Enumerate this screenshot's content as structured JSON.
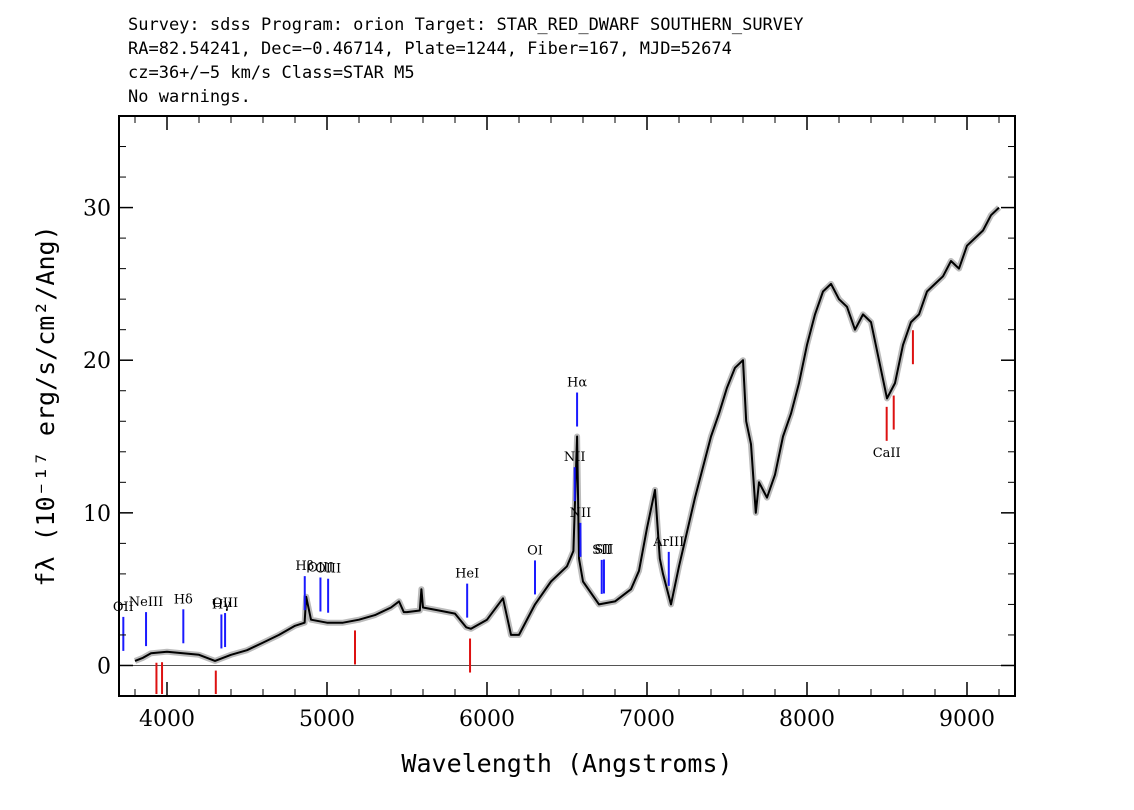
{
  "header": {
    "line1": "Survey: sdss Program: orion Target: STAR_RED_DWARF SOUTHERN_SURVEY",
    "line2": "RA=82.54241, Dec=−0.46714, Plate=1244, Fiber=167, MJD=52674",
    "line3": "cz=36+/−5 km/s Class=STAR M5",
    "line4": "No warnings."
  },
  "chart_data": {
    "type": "line",
    "xlabel": "Wavelength (Angstroms)",
    "ylabel": "fλ (10⁻¹⁷ erg/s/cm²/Ang)",
    "xlim": [
      3700,
      9300
    ],
    "ylim": [
      -2,
      36
    ],
    "x_ticks": [
      4000,
      5000,
      6000,
      7000,
      8000,
      9000
    ],
    "x_tick_labels": [
      "4000",
      "5000",
      "6000",
      "7000",
      "8000",
      "9000"
    ],
    "y_ticks": [
      0,
      10,
      20,
      30
    ],
    "y_tick_labels": [
      "0",
      "10",
      "20",
      "30"
    ],
    "grid": false,
    "colors": {
      "flux": "#000000",
      "error": "#bbbbbb",
      "emission": "#1a1aff",
      "absorption": "#dd1111"
    },
    "series": [
      {
        "x": [
          3800,
          3850,
          3900,
          4000,
          4100,
          4200,
          4300,
          4400,
          4500,
          4600,
          4700,
          4800,
          4860,
          4870,
          4900,
          5000,
          5100,
          5200,
          5300,
          5400,
          5450,
          5480,
          5500,
          5580,
          5590,
          5600,
          5700,
          5800,
          5870,
          5900,
          6000,
          6100,
          6150,
          6200,
          6300,
          6400,
          6500,
          6540,
          6563,
          6575,
          6600,
          6700,
          6800,
          6900,
          6950,
          7000,
          7050,
          7080,
          7100,
          7150,
          7200,
          7300,
          7400,
          7450,
          7500,
          7550,
          7600,
          7620,
          7650,
          7680,
          7700,
          7750,
          7800,
          7850,
          7900,
          7950,
          8000,
          8050,
          8100,
          8150,
          8200,
          8250,
          8300,
          8350,
          8400,
          8450,
          8500,
          8550,
          8600,
          8650,
          8700,
          8750,
          8800,
          8850,
          8900,
          8950,
          9000,
          9050,
          9100,
          9150,
          9200
        ],
        "y": [
          0.3,
          0.5,
          0.8,
          0.9,
          0.8,
          0.7,
          0.3,
          0.7,
          1.0,
          1.5,
          2.0,
          2.6,
          2.8,
          4.5,
          3.0,
          2.8,
          2.8,
          3.0,
          3.3,
          3.8,
          4.2,
          3.5,
          3.5,
          3.6,
          5.0,
          3.8,
          3.6,
          3.4,
          2.5,
          2.4,
          3.0,
          4.4,
          2.0,
          2.0,
          4.0,
          5.5,
          6.5,
          7.5,
          15.0,
          7.0,
          5.5,
          4.0,
          4.2,
          5.0,
          6.2,
          9.0,
          11.5,
          7.0,
          6.0,
          4.0,
          6.5,
          11.0,
          15.0,
          16.5,
          18.2,
          19.5,
          20.0,
          16.0,
          14.5,
          10.0,
          12.0,
          11.0,
          12.5,
          15.0,
          16.5,
          18.5,
          21.0,
          23.0,
          24.5,
          25.0,
          24.0,
          23.5,
          22.0,
          23.0,
          22.5,
          20.0,
          17.5,
          18.5,
          21.0,
          22.5,
          23.0,
          24.5,
          25.0,
          25.5,
          26.5,
          26.0,
          27.5,
          28.0,
          28.5,
          29.5,
          30.0
        ]
      }
    ],
    "line_markers": [
      {
        "label": "OII",
        "x": 3727,
        "kind": "emission"
      },
      {
        "label": "NeIII",
        "x": 3869,
        "kind": "emission"
      },
      {
        "label": "Hδ",
        "x": 4102,
        "kind": "emission"
      },
      {
        "label": "Hγ",
        "x": 4340,
        "kind": "emission"
      },
      {
        "label": "OIII",
        "x": 4363,
        "kind": "emission"
      },
      {
        "label": "Hβ",
        "x": 4861,
        "kind": "emission"
      },
      {
        "label": "OIII",
        "x": 4959,
        "kind": "emission"
      },
      {
        "label": "OIII",
        "x": 5007,
        "kind": "emission"
      },
      {
        "label": "HeI",
        "x": 5876,
        "kind": "emission"
      },
      {
        "label": "OI",
        "x": 6300,
        "kind": "emission"
      },
      {
        "label": "NII",
        "x": 6548,
        "kind": "emission"
      },
      {
        "label": "Hα",
        "x": 6563,
        "kind": "emission"
      },
      {
        "label": "NII",
        "x": 6584,
        "kind": "emission"
      },
      {
        "label": "SII",
        "x": 6717,
        "kind": "emission"
      },
      {
        "label": "SII",
        "x": 6731,
        "kind": "emission"
      },
      {
        "label": "ArIII",
        "x": 7136,
        "kind": "emission"
      },
      {
        "label": "",
        "x": 3934,
        "kind": "absorption"
      },
      {
        "label": "",
        "x": 3969,
        "kind": "absorption"
      },
      {
        "label": "",
        "x": 4305,
        "kind": "absorption"
      },
      {
        "label": "",
        "x": 5175,
        "kind": "absorption"
      },
      {
        "label": "",
        "x": 5894,
        "kind": "absorption"
      },
      {
        "label": "CaII",
        "x": 8498,
        "kind": "absorption"
      },
      {
        "label": "",
        "x": 8542,
        "kind": "absorption"
      },
      {
        "label": "",
        "x": 8662,
        "kind": "absorption"
      }
    ]
  }
}
